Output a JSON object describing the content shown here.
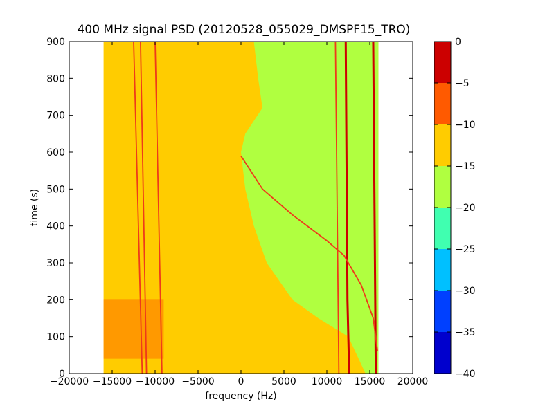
{
  "chart_data": {
    "type": "heatmap",
    "title": "400 MHz signal PSD (20120528_055029_DMSPF15_TRO)",
    "xlabel": "frequency (Hz)",
    "ylabel": "time (s)",
    "xlim": [
      -20000,
      20000
    ],
    "ylim": [
      0,
      900
    ],
    "xticks": [
      -20000,
      -15000,
      -10000,
      -5000,
      0,
      5000,
      10000,
      15000,
      20000
    ],
    "xtick_labels": [
      "−20000",
      "−15000",
      "−10000",
      "−5000",
      "0",
      "5000",
      "10000",
      "15000",
      "20000"
    ],
    "yticks": [
      0,
      100,
      200,
      300,
      400,
      500,
      600,
      700,
      800,
      900
    ],
    "ytick_labels": [
      "0",
      "100",
      "200",
      "300",
      "400",
      "500",
      "600",
      "700",
      "800",
      "900"
    ],
    "data_extent": {
      "freq": [
        -16000,
        16000
      ],
      "time": [
        0,
        900
      ]
    },
    "colorbar": {
      "levels": [
        -40,
        -35,
        -30,
        -25,
        -20,
        -15,
        -10,
        -5,
        0
      ],
      "tick_labels": [
        "−40",
        "−35",
        "−30",
        "−25",
        "−20",
        "−15",
        "−10",
        "−5",
        "0"
      ],
      "colors": [
        "#0000cd",
        "#0040ff",
        "#00c0ff",
        "#40ffb0",
        "#b0ff40",
        "#ffcc00",
        "#ff5a00",
        "#cc0000"
      ]
    },
    "background_level_bands": [
      {
        "time": [
          0,
          900
        ],
        "freq": [
          -16000,
          16000
        ],
        "band_index": 5
      }
    ],
    "low_noise_region_left_edge": [
      {
        "time": 900,
        "freq": 1500
      },
      {
        "time": 800,
        "freq": 2000
      },
      {
        "time": 720,
        "freq": 2500
      },
      {
        "time": 650,
        "freq": 500
      },
      {
        "time": 600,
        "freq": 0
      },
      {
        "time": 500,
        "freq": 500
      },
      {
        "time": 400,
        "freq": 1500
      },
      {
        "time": 300,
        "freq": 3000
      },
      {
        "time": 200,
        "freq": 6000
      },
      {
        "time": 150,
        "freq": 9000
      },
      {
        "time": 100,
        "freq": 12500
      },
      {
        "time": 0,
        "freq": 14500
      }
    ],
    "low_noise_region_right_edge": 16000,
    "high_power_patch": {
      "time": [
        40,
        200
      ],
      "freq": [
        -16000,
        -9000
      ]
    },
    "signal_lines": [
      {
        "name": "",
        "points": [
          [
            -12500,
            900
          ],
          [
            -11500,
            0
          ]
        ],
        "level": -10
      },
      {
        "name": "",
        "points": [
          [
            -11700,
            900
          ],
          [
            -11000,
            0
          ]
        ],
        "level": -10
      },
      {
        "name": "",
        "points": [
          [
            -10000,
            900
          ],
          [
            -9200,
            0
          ]
        ],
        "level": -10
      },
      {
        "name": "",
        "points": [
          [
            11000,
            900
          ],
          [
            11400,
            0
          ]
        ],
        "level": -10
      },
      {
        "name": "",
        "points": [
          [
            12200,
            900
          ],
          [
            12400,
            200
          ],
          [
            12600,
            0
          ]
        ],
        "level": -5
      },
      {
        "name": "",
        "points": [
          [
            15400,
            900
          ],
          [
            15700,
            0
          ]
        ],
        "level": -5
      },
      {
        "name": "",
        "points": [
          [
            0,
            590
          ],
          [
            2500,
            500
          ],
          [
            6000,
            430
          ],
          [
            10000,
            360
          ],
          [
            12000,
            320
          ],
          [
            14000,
            240
          ],
          [
            15400,
            150
          ],
          [
            15900,
            60
          ]
        ],
        "level": -10
      }
    ]
  }
}
